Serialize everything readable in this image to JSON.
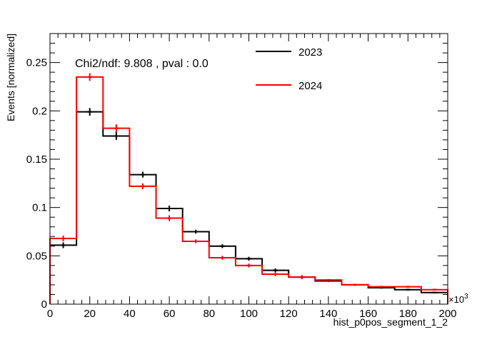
{
  "chart_data": {
    "type": "line",
    "xlabel": "hist_p0pos_segment_1_2",
    "ylabel": "Events [normalized]",
    "x_multiplier_label": "×10",
    "x_multiplier_exp": "3",
    "xlim": [
      0,
      200
    ],
    "ylim": [
      0,
      0.28
    ],
    "grid": false,
    "x_ticks": [
      "0",
      "20",
      "40",
      "60",
      "80",
      "100",
      "120",
      "140",
      "160",
      "180",
      "200"
    ],
    "y_ticks": [
      "0",
      "0.05",
      "0.1",
      "0.15",
      "0.2",
      "0.25"
    ],
    "bin_edges": [
      0,
      13.33,
      26.67,
      40,
      53.33,
      66.67,
      80,
      93.33,
      106.67,
      120,
      133.33,
      146.67,
      160,
      173.33,
      186.67,
      200
    ],
    "annotation": "Chi2/ndf: 9.808 , pval : 0.0",
    "series": [
      {
        "name": "2023",
        "color": "#000000",
        "values": [
          0.061,
          0.199,
          0.174,
          0.134,
          0.099,
          0.075,
          0.06,
          0.047,
          0.035,
          0.028,
          0.024,
          0.02,
          0.017,
          0.015,
          0.012
        ],
        "errors": [
          0.003,
          0.004,
          0.004,
          0.003,
          0.003,
          0.002,
          0.002,
          0.002,
          0.002,
          0.002,
          0.001,
          0.001,
          0.001,
          0.001,
          0.001
        ]
      },
      {
        "name": "2024",
        "color": "#ff0000",
        "values": [
          0.068,
          0.235,
          0.182,
          0.122,
          0.089,
          0.065,
          0.048,
          0.04,
          0.031,
          0.028,
          0.025,
          0.02,
          0.018,
          0.018,
          0.015
        ],
        "errors": [
          0.003,
          0.004,
          0.004,
          0.003,
          0.003,
          0.002,
          0.002,
          0.002,
          0.002,
          0.002,
          0.001,
          0.001,
          0.001,
          0.001,
          0.001
        ]
      }
    ],
    "legend_position": "top-right"
  }
}
